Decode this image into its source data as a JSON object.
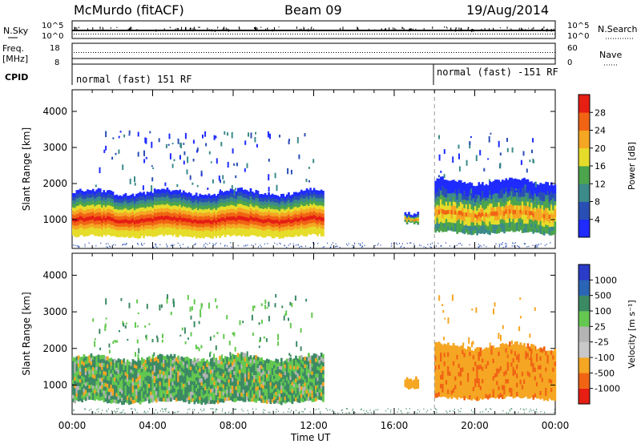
{
  "header": {
    "station": "McMurdo (fitACF)",
    "beam": "Beam 09",
    "date": "19/Aug/2014"
  },
  "noise_panel": {
    "left_label": "N.Sky",
    "right_label": "N.Search",
    "left_ticks": [
      "10^5",
      "10^0"
    ],
    "right_ticks": [
      "10^5",
      "10^0"
    ]
  },
  "freq_panel": {
    "left_label_line1": "Freq.",
    "left_label_line2": "[MHz]",
    "right_label": "Nave",
    "left_ticks": [
      "18",
      "8"
    ],
    "right_ticks": [
      "60",
      "0"
    ]
  },
  "cpid_panel": {
    "label": "CPID",
    "segment1": "normal (fast) 151 RF",
    "segment2": "normal (fast) -151 RF",
    "switch_time": "18:00"
  },
  "colors": {
    "power": [
      "#1f2bff",
      "#2a4fb4",
      "#3c8a8a",
      "#4ca44c",
      "#e6dc2a",
      "#f5a623",
      "#f06414",
      "#e61e14"
    ],
    "velocity": [
      "#e61e14",
      "#f06414",
      "#f5a623",
      "#c8c8c8",
      "#b4b4b4",
      "#64c850",
      "#3c8a64",
      "#2a64b4",
      "#2a3cc8"
    ]
  },
  "chart_data": [
    {
      "type": "heatmap",
      "name": "power",
      "ylabel": "Slant Range [km]",
      "y_ticks": [
        "1000",
        "2000",
        "3000",
        "4000"
      ],
      "ylim": [
        200,
        4600
      ],
      "colorbar_label": "Power [dB]",
      "colorbar_ticks": [
        "4",
        "8",
        "12",
        "16",
        "20",
        "24",
        "28"
      ],
      "bands": [
        {
          "t0": 0,
          "t1": 12.5,
          "r_lo": 500,
          "r_hi": 1700
        },
        {
          "t0": 16.5,
          "t1": 17.2,
          "r_lo": 900,
          "r_hi": 1200
        },
        {
          "t0": 18,
          "t1": 24,
          "r_lo": 600,
          "r_hi": 2000
        }
      ]
    },
    {
      "type": "heatmap",
      "name": "velocity",
      "ylabel": "Slant Range [km]",
      "y_ticks": [
        "1000",
        "2000",
        "3000",
        "4000"
      ],
      "ylim": [
        200,
        4600
      ],
      "colorbar_label": "Velocity [m s⁻¹]",
      "colorbar_ticks": [
        "1000",
        "500",
        "100",
        "25",
        "-25",
        "-100",
        "-500",
        "-1000"
      ],
      "bands": [
        {
          "t0": 0,
          "t1": 12.5,
          "r_lo": 500,
          "r_hi": 1700
        },
        {
          "t0": 16.5,
          "t1": 17.2,
          "r_lo": 900,
          "r_hi": 1200
        },
        {
          "t0": 18,
          "t1": 24,
          "r_lo": 600,
          "r_hi": 2000
        }
      ]
    }
  ],
  "x_axis": {
    "label": "Time UT",
    "ticks": [
      "00:00",
      "04:00",
      "08:00",
      "12:00",
      "16:00",
      "20:00",
      "00:00"
    ],
    "tick_hours": [
      0,
      4,
      8,
      12,
      16,
      20,
      24
    ]
  }
}
